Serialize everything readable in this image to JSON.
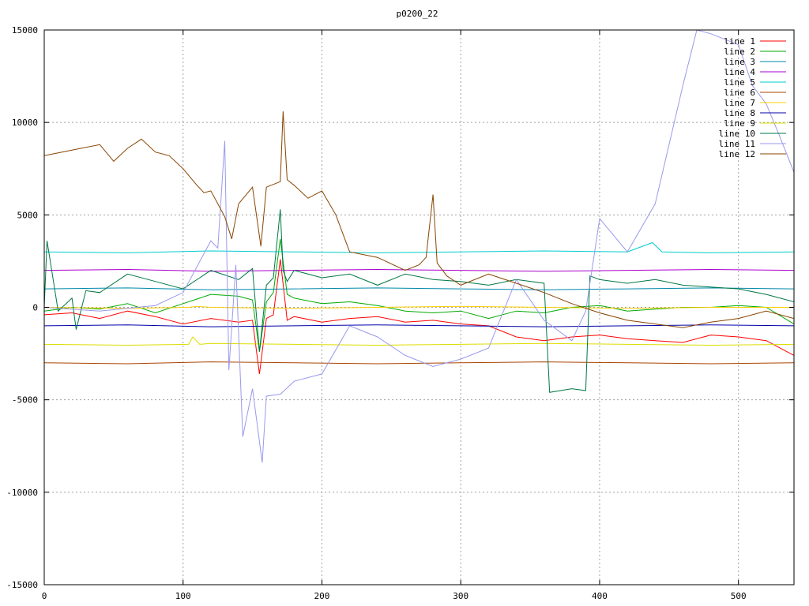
{
  "chart_data": {
    "type": "line",
    "title": "p0200_22",
    "xlabel": "",
    "ylabel": "",
    "xlim": [
      0,
      540
    ],
    "ylim": [
      -15000,
      15000
    ],
    "x_ticks": [
      0,
      100,
      200,
      300,
      400,
      500
    ],
    "y_ticks": [
      -15000,
      -10000,
      -5000,
      0,
      5000,
      10000,
      15000
    ],
    "grid": true,
    "legend_position": "top-right",
    "series": [
      {
        "name": "line 1",
        "color": "#ff0000",
        "x": [
          0,
          20,
          40,
          60,
          80,
          100,
          120,
          140,
          150,
          155,
          160,
          165,
          170,
          175,
          180,
          200,
          220,
          240,
          260,
          280,
          300,
          320,
          340,
          360,
          380,
          400,
          420,
          440,
          460,
          480,
          500,
          520,
          540
        ],
        "y": [
          -400,
          -300,
          -600,
          -200,
          -500,
          -900,
          -600,
          -800,
          -700,
          -3600,
          -600,
          -400,
          2600,
          -700,
          -500,
          -800,
          -600,
          -500,
          -800,
          -700,
          -900,
          -1000,
          -1600,
          -1800,
          -1600,
          -1500,
          -1700,
          -1800,
          -1900,
          -1500,
          -1600,
          -1800,
          -2600
        ]
      },
      {
        "name": "line 2",
        "color": "#00aa00",
        "x": [
          0,
          20,
          40,
          60,
          80,
          100,
          120,
          140,
          150,
          155,
          160,
          165,
          170,
          175,
          180,
          200,
          220,
          240,
          260,
          280,
          300,
          320,
          340,
          360,
          380,
          400,
          420,
          440,
          460,
          480,
          500,
          520,
          540
        ],
        "y": [
          -200,
          0,
          -100,
          200,
          -300,
          200,
          700,
          600,
          400,
          -2400,
          300,
          800,
          3700,
          700,
          500,
          200,
          300,
          100,
          -200,
          -300,
          -200,
          -600,
          -200,
          -300,
          0,
          100,
          -200,
          -100,
          0,
          0,
          100,
          0,
          -900
        ]
      },
      {
        "name": "line 3",
        "color": "#0088aa",
        "x": [
          0,
          60,
          120,
          180,
          240,
          300,
          360,
          420,
          480,
          540
        ],
        "y": [
          1000,
          1050,
          950,
          1000,
          1050,
          1000,
          950,
          1000,
          1050,
          1000
        ]
      },
      {
        "name": "line 4",
        "color": "#aa00cc",
        "x": [
          0,
          60,
          120,
          180,
          240,
          300,
          360,
          420,
          480,
          540
        ],
        "y": [
          2000,
          2050,
          1950,
          2000,
          2050,
          2000,
          1950,
          2000,
          2050,
          2000
        ]
      },
      {
        "name": "line 5",
        "color": "#00cccc",
        "x": [
          0,
          60,
          120,
          180,
          240,
          300,
          360,
          420,
          438,
          445,
          480,
          540
        ],
        "y": [
          3000,
          2950,
          3050,
          3000,
          2950,
          3000,
          3050,
          3000,
          3500,
          3000,
          2950,
          3000
        ]
      },
      {
        "name": "line 6",
        "color": "#aa4400",
        "x": [
          0,
          60,
          120,
          180,
          240,
          300,
          360,
          420,
          480,
          540
        ],
        "y": [
          -3000,
          -3050,
          -2950,
          -3000,
          -3050,
          -3000,
          -2950,
          -3000,
          -3050,
          -3000
        ]
      },
      {
        "name": "line 7",
        "color": "#ffcc00",
        "x": [
          0,
          60,
          104,
          110,
          120,
          180,
          240,
          300,
          360,
          420,
          480,
          540
        ],
        "y": [
          0,
          -50,
          0,
          50,
          0,
          -50,
          0,
          50,
          0,
          -50,
          0,
          0
        ]
      },
      {
        "name": "line 8",
        "color": "#0000aa",
        "x": [
          0,
          60,
          120,
          180,
          240,
          300,
          360,
          420,
          480,
          540
        ],
        "y": [
          -1000,
          -950,
          -1050,
          -1000,
          -950,
          -1000,
          -1050,
          -1000,
          -950,
          -1000
        ]
      },
      {
        "name": "line 9",
        "color": "#dddd00",
        "x": [
          0,
          60,
          104,
          107,
          112,
          120,
          180,
          240,
          300,
          360,
          420,
          480,
          540
        ],
        "y": [
          -2000,
          -2050,
          -2000,
          -1600,
          -2000,
          -1950,
          -2000,
          -2050,
          -2000,
          -1950,
          -2000,
          -2050,
          -2000
        ]
      },
      {
        "name": "line 10",
        "color": "#007744",
        "x": [
          0,
          2,
          10,
          20,
          23,
          30,
          40,
          60,
          80,
          100,
          120,
          140,
          150,
          155,
          160,
          165,
          170,
          172,
          175,
          180,
          200,
          220,
          240,
          260,
          280,
          300,
          320,
          340,
          360,
          364,
          380,
          390,
          393,
          400,
          420,
          440,
          460,
          480,
          500,
          520,
          540
        ],
        "y": [
          0,
          3600,
          -200,
          500,
          -1200,
          900,
          800,
          1800,
          1400,
          1000,
          2000,
          1500,
          2100,
          -2400,
          1200,
          1600,
          5300,
          2000,
          1400,
          2000,
          1600,
          1800,
          1200,
          1800,
          1500,
          1400,
          1200,
          1500,
          1300,
          -4600,
          -4400,
          -4500,
          1700,
          1500,
          1300,
          1500,
          1200,
          1100,
          1000,
          700,
          300
        ]
      },
      {
        "name": "line 11",
        "color": "#9999ee",
        "x": [
          0,
          40,
          80,
          100,
          120,
          125,
          130,
          133,
          138,
          143,
          150,
          157,
          160,
          170,
          180,
          200,
          220,
          240,
          260,
          280,
          300,
          320,
          340,
          360,
          380,
          390,
          400,
          420,
          440,
          460,
          470,
          480,
          500,
          510,
          520,
          530,
          540
        ],
        "y": [
          0,
          -200,
          100,
          800,
          3600,
          3200,
          9000,
          -3400,
          2300,
          -7000,
          -4400,
          -8400,
          -4800,
          -4700,
          -4000,
          -3600,
          -1000,
          -1600,
          -2600,
          -3200,
          -2800,
          -2200,
          1500,
          -700,
          -1800,
          -200,
          4800,
          3000,
          5600,
          12000,
          15000,
          14800,
          14200,
          12000,
          11000,
          9200,
          7300
        ]
      },
      {
        "name": "line 12",
        "color": "#884400",
        "x": [
          0,
          20,
          40,
          50,
          60,
          70,
          80,
          90,
          100,
          110,
          115,
          120,
          130,
          135,
          140,
          150,
          156,
          160,
          170,
          172,
          175,
          180,
          190,
          200,
          210,
          215,
          220,
          240,
          260,
          270,
          275,
          280,
          283,
          290,
          300,
          320,
          340,
          360,
          380,
          400,
          420,
          440,
          460,
          480,
          500,
          520,
          540
        ],
        "y": [
          8200,
          8500,
          8800,
          7900,
          8600,
          9100,
          8400,
          8200,
          7500,
          6600,
          6200,
          6300,
          4900,
          3700,
          5600,
          6500,
          3300,
          6500,
          6800,
          10600,
          6900,
          6600,
          5900,
          6300,
          5000,
          4000,
          3000,
          2700,
          2000,
          2300,
          2700,
          6100,
          2400,
          1700,
          1200,
          1800,
          1300,
          800,
          200,
          -300,
          -700,
          -900,
          -1100,
          -800,
          -600,
          -200,
          -600
        ]
      }
    ]
  }
}
